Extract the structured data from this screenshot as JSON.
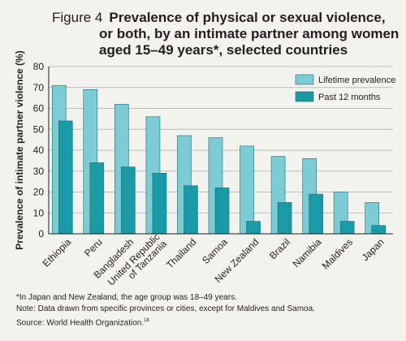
{
  "figure_label": "Figure 4",
  "title": "Prevalence of physical or sexual violence, or both, by an intimate partner among women aged 15–49 years*, selected countries",
  "colors": {
    "background": "#f2f2ee",
    "lifetime": "#7ccbd5",
    "past12": "#1a9aa6",
    "bar_stroke": "#1d6f78",
    "grid": "#bdbdbd"
  },
  "chart_data": {
    "type": "bar",
    "ylabel": "Prevalence of intimate partner violence (%)",
    "ylim": [
      0,
      80
    ],
    "yticks": [
      0,
      10,
      20,
      30,
      40,
      50,
      60,
      70,
      80
    ],
    "grid": true,
    "legend_position": "top-right",
    "categories": [
      "Ethiopia",
      "Peru",
      "Bangladesh",
      "United Republic of Tanzania",
      "Thailand",
      "Samoa",
      "New Zealand",
      "Brazil",
      "Namibia",
      "Maldives",
      "Japan"
    ],
    "category_lines": [
      [
        "Ethiopia"
      ],
      [
        "Peru"
      ],
      [
        "Bangladesh"
      ],
      [
        "United Republic",
        "of Tanzania"
      ],
      [
        "Thailand"
      ],
      [
        "Samoa"
      ],
      [
        "New Zealand"
      ],
      [
        "Brazil"
      ],
      [
        "Namibia"
      ],
      [
        "Maldives"
      ],
      [
        "Japan"
      ]
    ],
    "series": [
      {
        "name": "Lifetime prevalence",
        "values": [
          71,
          69,
          62,
          56,
          47,
          46,
          42,
          37,
          36,
          20,
          15
        ]
      },
      {
        "name": "Past 12 months",
        "values": [
          54,
          34,
          32,
          29,
          23,
          22,
          6,
          15,
          19,
          6,
          4
        ]
      }
    ]
  },
  "notes": {
    "line1": "*In Japan and New Zealand, the age group was 18–49 years.",
    "line2": "Note: Data drawn from specific provinces or cities, except for Maldives and Samoa.",
    "line3": "Source: World Health Organization.",
    "line3_ref": "18"
  }
}
